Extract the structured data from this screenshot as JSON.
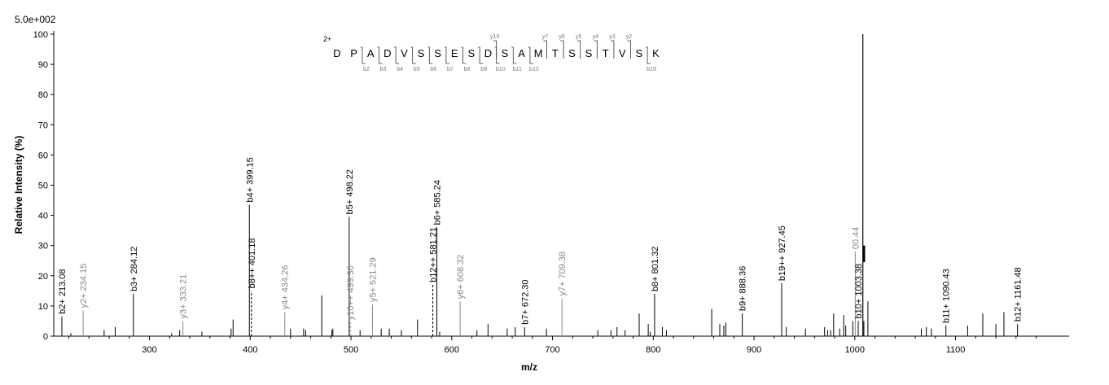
{
  "chart_data": {
    "type": "bar",
    "scale_label": "5.0e+002",
    "xlabel": "m/z",
    "ylabel": "Relative   Intensity (%)",
    "xlim": [
      205,
      1205
    ],
    "ylim": [
      0,
      100
    ],
    "x_ticks": [
      300,
      400,
      500,
      600,
      700,
      800,
      900,
      1000,
      1100
    ],
    "y_ticks": [
      0,
      10,
      20,
      30,
      40,
      50,
      60,
      70,
      80,
      90,
      100
    ],
    "grid": false,
    "annotated_peaks": [
      {
        "mz": 213.08,
        "intensity": 6.5,
        "label": "b2+ 213.08",
        "color": "#000000",
        "dashed": false
      },
      {
        "mz": 234.15,
        "intensity": 8.5,
        "label": "y2+ 234.15",
        "color": "#888888",
        "dashed": false
      },
      {
        "mz": 284.12,
        "intensity": 14,
        "label": "b3+ 284.12",
        "color": "#000000",
        "dashed": false
      },
      {
        "mz": 333.21,
        "intensity": 5,
        "label": "y3+ 333.21",
        "color": "#888888",
        "dashed": false
      },
      {
        "mz": 399.15,
        "intensity": 43.5,
        "label": "b4+ 399.15",
        "color": "#000000",
        "dashed": false
      },
      {
        "mz": 401.18,
        "intensity": 15,
        "label": "b8++ 401.18",
        "color": "#000000",
        "dashed": true
      },
      {
        "mz": 434.26,
        "intensity": 8,
        "label": "y4+ 434.26",
        "color": "#888888",
        "dashed": false
      },
      {
        "mz": 498.22,
        "intensity": 39.5,
        "label": "b5+ 498.22",
        "color": "#000000",
        "dashed": false
      },
      {
        "mz": 499.3,
        "intensity": 4.5,
        "label": "y10++ 499.30",
        "color": "#888888",
        "dashed": true
      },
      {
        "mz": 521.29,
        "intensity": 10.5,
        "label": "y5+ 521.29",
        "color": "#888888",
        "dashed": false
      },
      {
        "mz": 581.21,
        "intensity": 17,
        "label": "b12++ 581.21",
        "color": "#000000",
        "dashed": true
      },
      {
        "mz": 585.24,
        "intensity": 36,
        "label": "b6+ 585.24",
        "color": "#000000",
        "dashed": false
      },
      {
        "mz": 608.32,
        "intensity": 11.5,
        "label": "y6+ 608.32",
        "color": "#888888",
        "dashed": false
      },
      {
        "mz": 672.3,
        "intensity": 3,
        "label": "b7+ 672.30",
        "color": "#000000",
        "dashed": false
      },
      {
        "mz": 709.38,
        "intensity": 12.5,
        "label": "y7+ 709.38",
        "color": "#888888",
        "dashed": false
      },
      {
        "mz": 801.32,
        "intensity": 14,
        "label": "b8+ 801.32",
        "color": "#000000",
        "dashed": false
      },
      {
        "mz": 888.36,
        "intensity": 7.5,
        "label": "b9+ 888.36",
        "color": "#000000",
        "dashed": false
      },
      {
        "mz": 927.45,
        "intensity": 17.5,
        "label": "b19++ 927.45",
        "color": "#000000",
        "dashed": false
      },
      {
        "mz": 1000.44,
        "intensity": 28,
        "label": "00.44",
        "color": "#888888",
        "dashed": false
      },
      {
        "mz": 1003.38,
        "intensity": 5,
        "label": "b10+ 1003.38",
        "color": "#000000",
        "dashed": false
      },
      {
        "mz": 1090.43,
        "intensity": 3.5,
        "label": "b11+ 1090.43",
        "color": "#000000",
        "dashed": false
      },
      {
        "mz": 1161.48,
        "intensity": 4,
        "label": "b12+ 1161.48",
        "color": "#000000",
        "dashed": false
      }
    ],
    "unlabeled_peaks": [
      {
        "mz": 222,
        "intensity": 1
      },
      {
        "mz": 255,
        "intensity": 2
      },
      {
        "mz": 266,
        "intensity": 3
      },
      {
        "mz": 322,
        "intensity": 1
      },
      {
        "mz": 330,
        "intensity": 2
      },
      {
        "mz": 352,
        "intensity": 1.5
      },
      {
        "mz": 381,
        "intensity": 2.5
      },
      {
        "mz": 383,
        "intensity": 5.5
      },
      {
        "mz": 440,
        "intensity": 2.5
      },
      {
        "mz": 453,
        "intensity": 2.5
      },
      {
        "mz": 455,
        "intensity": 2
      },
      {
        "mz": 471,
        "intensity": 13.5
      },
      {
        "mz": 481,
        "intensity": 2
      },
      {
        "mz": 482,
        "intensity": 2.5
      },
      {
        "mz": 509,
        "intensity": 2
      },
      {
        "mz": 530,
        "intensity": 2.5
      },
      {
        "mz": 538,
        "intensity": 2.5
      },
      {
        "mz": 550,
        "intensity": 2
      },
      {
        "mz": 566,
        "intensity": 5.5
      },
      {
        "mz": 588,
        "intensity": 1.5
      },
      {
        "mz": 625,
        "intensity": 2
      },
      {
        "mz": 636,
        "intensity": 4
      },
      {
        "mz": 655,
        "intensity": 2.5
      },
      {
        "mz": 663,
        "intensity": 3
      },
      {
        "mz": 694,
        "intensity": 2.5
      },
      {
        "mz": 745,
        "intensity": 2
      },
      {
        "mz": 758,
        "intensity": 2
      },
      {
        "mz": 764,
        "intensity": 3
      },
      {
        "mz": 772,
        "intensity": 2
      },
      {
        "mz": 786,
        "intensity": 7.5
      },
      {
        "mz": 795,
        "intensity": 4
      },
      {
        "mz": 797,
        "intensity": 1.5
      },
      {
        "mz": 809,
        "intensity": 3
      },
      {
        "mz": 813,
        "intensity": 2
      },
      {
        "mz": 858,
        "intensity": 9
      },
      {
        "mz": 866,
        "intensity": 4
      },
      {
        "mz": 870,
        "intensity": 3.5
      },
      {
        "mz": 872,
        "intensity": 4.5
      },
      {
        "mz": 932,
        "intensity": 3
      },
      {
        "mz": 951,
        "intensity": 2.5
      },
      {
        "mz": 970,
        "intensity": 3
      },
      {
        "mz": 973,
        "intensity": 2
      },
      {
        "mz": 976,
        "intensity": 2
      },
      {
        "mz": 979,
        "intensity": 7.5
      },
      {
        "mz": 985,
        "intensity": 2.5
      },
      {
        "mz": 989,
        "intensity": 7
      },
      {
        "mz": 991,
        "intensity": 3.5
      },
      {
        "mz": 998,
        "intensity": 5
      },
      {
        "mz": 1009,
        "intensity": 5
      },
      {
        "mz": 1013,
        "intensity": 11.5
      },
      {
        "mz": 1066,
        "intensity": 2.5
      },
      {
        "mz": 1071,
        "intensity": 3
      },
      {
        "mz": 1076,
        "intensity": 2.5
      },
      {
        "mz": 1112,
        "intensity": 3.5
      },
      {
        "mz": 1127,
        "intensity": 7.5
      },
      {
        "mz": 1140,
        "intensity": 4
      },
      {
        "mz": 1148,
        "intensity": 8
      }
    ],
    "base_peak": {
      "mz": 1008,
      "intensity": 100
    },
    "sequence": {
      "charge": "2+",
      "residues": [
        "D",
        "P",
        "A",
        "D",
        "V",
        "S",
        "S",
        "E",
        "S",
        "D",
        "S",
        "A",
        "M",
        "T",
        "S",
        "S",
        "T",
        "V",
        "S",
        "K"
      ],
      "b_ions": [
        {
          "label": "b2",
          "after": 2
        },
        {
          "label": "b3",
          "after": 3
        },
        {
          "label": "b4",
          "after": 4
        },
        {
          "label": "b5",
          "after": 5
        },
        {
          "label": "b6",
          "after": 6
        },
        {
          "label": "b7",
          "after": 7
        },
        {
          "label": "b8",
          "after": 8
        },
        {
          "label": "b9",
          "after": 9
        },
        {
          "label": "b10",
          "after": 10
        },
        {
          "label": "b11",
          "after": 11
        },
        {
          "label": "b12",
          "after": 12
        },
        {
          "label": "b19",
          "after": 19
        }
      ],
      "y_ions": [
        {
          "label": "y10",
          "after": 10
        },
        {
          "label": "y7",
          "after": 13
        },
        {
          "label": "y6",
          "after": 14
        },
        {
          "label": "y5",
          "after": 15
        },
        {
          "label": "y4",
          "after": 16
        },
        {
          "label": "y3",
          "after": 17
        },
        {
          "label": "y2",
          "after": 18
        }
      ]
    }
  }
}
